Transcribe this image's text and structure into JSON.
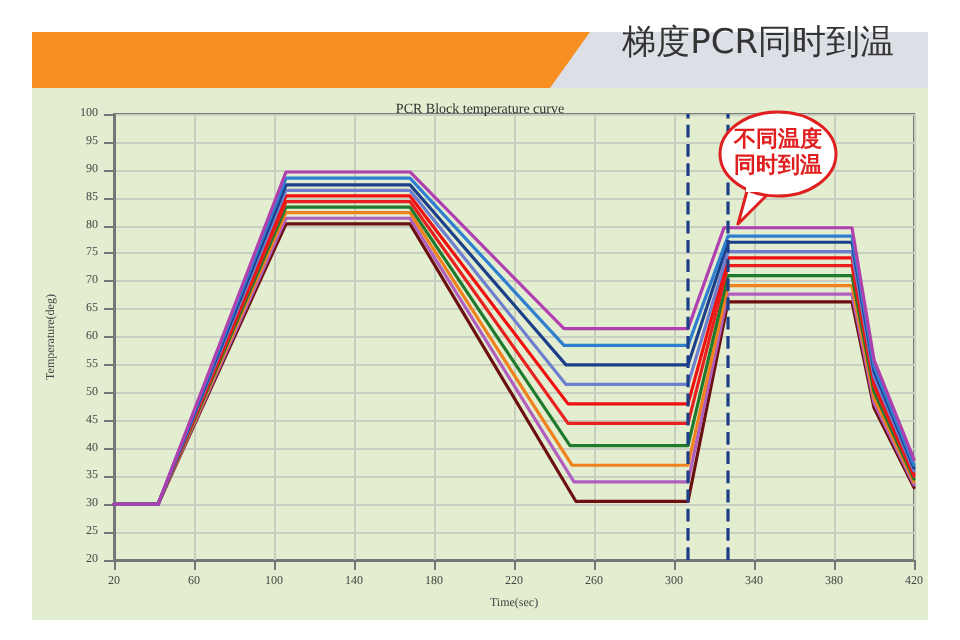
{
  "chart_data": {
    "type": "line",
    "title": "梯度PCR同时到温",
    "subtitle": "PCR Block temperature curve",
    "xlabel": "Time(sec)",
    "ylabel": "Temperature(deg)",
    "xlim": [
      20,
      420
    ],
    "xticks": [
      20,
      60,
      100,
      140,
      180,
      220,
      260,
      300,
      340,
      380,
      420
    ],
    "ylim": [
      20,
      100
    ],
    "yticks": [
      20,
      25,
      30,
      35,
      40,
      45,
      50,
      55,
      60,
      65,
      70,
      75,
      80,
      85,
      90,
      95,
      100
    ],
    "grid": true,
    "marker": "none",
    "line_style": "solid",
    "annotations": [
      "不同温度同时到温"
    ],
    "ref_lines": [
      {
        "axis": "x",
        "value": 307,
        "color": "#1c3f8a",
        "line_style": "dashed"
      },
      {
        "axis": "x",
        "value": 327,
        "color": "#1c3f8a",
        "line_style": "dashed"
      }
    ],
    "series": [
      {
        "color": "#6b0f0f",
        "x": [
          20,
          42,
          106,
          168,
          251,
          307,
          327,
          389,
          400,
          420
        ],
        "values": [
          30,
          30,
          80.3,
          80.3,
          30.5,
          30.5,
          66.3,
          66.3,
          47.3,
          33
        ]
      },
      {
        "color": "#b05fc0",
        "x": [
          20,
          42,
          106,
          168,
          250,
          307,
          327,
          389,
          400,
          420
        ],
        "values": [
          30,
          30,
          81.3,
          81.3,
          34,
          34,
          67.7,
          67.7,
          48.2,
          33.5
        ]
      },
      {
        "color": "#f0821e",
        "x": [
          20,
          42,
          106,
          168,
          249,
          307,
          327,
          389,
          400,
          420
        ],
        "values": [
          30,
          30,
          82.3,
          82.3,
          37,
          37,
          69.2,
          69.2,
          49.1,
          34
        ]
      },
      {
        "color": "#1f7a2e",
        "x": [
          20,
          42,
          106,
          168,
          248,
          307,
          327,
          389,
          400,
          420
        ],
        "values": [
          30,
          30,
          83.3,
          83.3,
          40.5,
          40.5,
          71,
          71,
          50.2,
          34.5
        ]
      },
      {
        "color": "#e8201e",
        "x": [
          20,
          42,
          106,
          168,
          247,
          307,
          327,
          389,
          400,
          420
        ],
        "values": [
          30,
          30,
          84.3,
          84.3,
          44.5,
          44.5,
          72.8,
          72.8,
          51.3,
          35
        ]
      },
      {
        "color": "#f01010",
        "x": [
          20,
          42,
          106,
          168,
          247,
          307,
          327,
          389,
          400,
          420
        ],
        "values": [
          30,
          30,
          85.3,
          85.3,
          48,
          48,
          74.2,
          74.2,
          52.1,
          35.5
        ]
      },
      {
        "color": "#6f7fd0",
        "x": [
          20,
          42,
          106,
          168,
          246,
          307,
          327,
          389,
          400,
          420
        ],
        "values": [
          30,
          30,
          86.3,
          86.3,
          51.5,
          51.5,
          75.3,
          75.3,
          52.9,
          36
        ]
      },
      {
        "color": "#1c3f8a",
        "x": [
          20,
          42,
          106,
          168,
          246,
          307,
          327,
          389,
          400,
          420
        ],
        "values": [
          30,
          30,
          87.3,
          87.3,
          55,
          55,
          77,
          77,
          53.9,
          36.5
        ]
      },
      {
        "color": "#2f7fd0",
        "x": [
          20,
          42,
          106,
          168,
          245,
          307,
          327,
          389,
          400,
          420
        ],
        "values": [
          30,
          30,
          88.5,
          88.5,
          58.5,
          58.5,
          78.1,
          78.1,
          54.7,
          37
        ]
      },
      {
        "color": "#b040b0",
        "x": [
          20,
          42,
          106,
          168,
          245,
          307,
          325,
          389,
          400,
          420
        ],
        "values": [
          30,
          30,
          89.6,
          89.6,
          61.5,
          61.5,
          79.6,
          79.6,
          55.9,
          38
        ]
      }
    ]
  }
}
